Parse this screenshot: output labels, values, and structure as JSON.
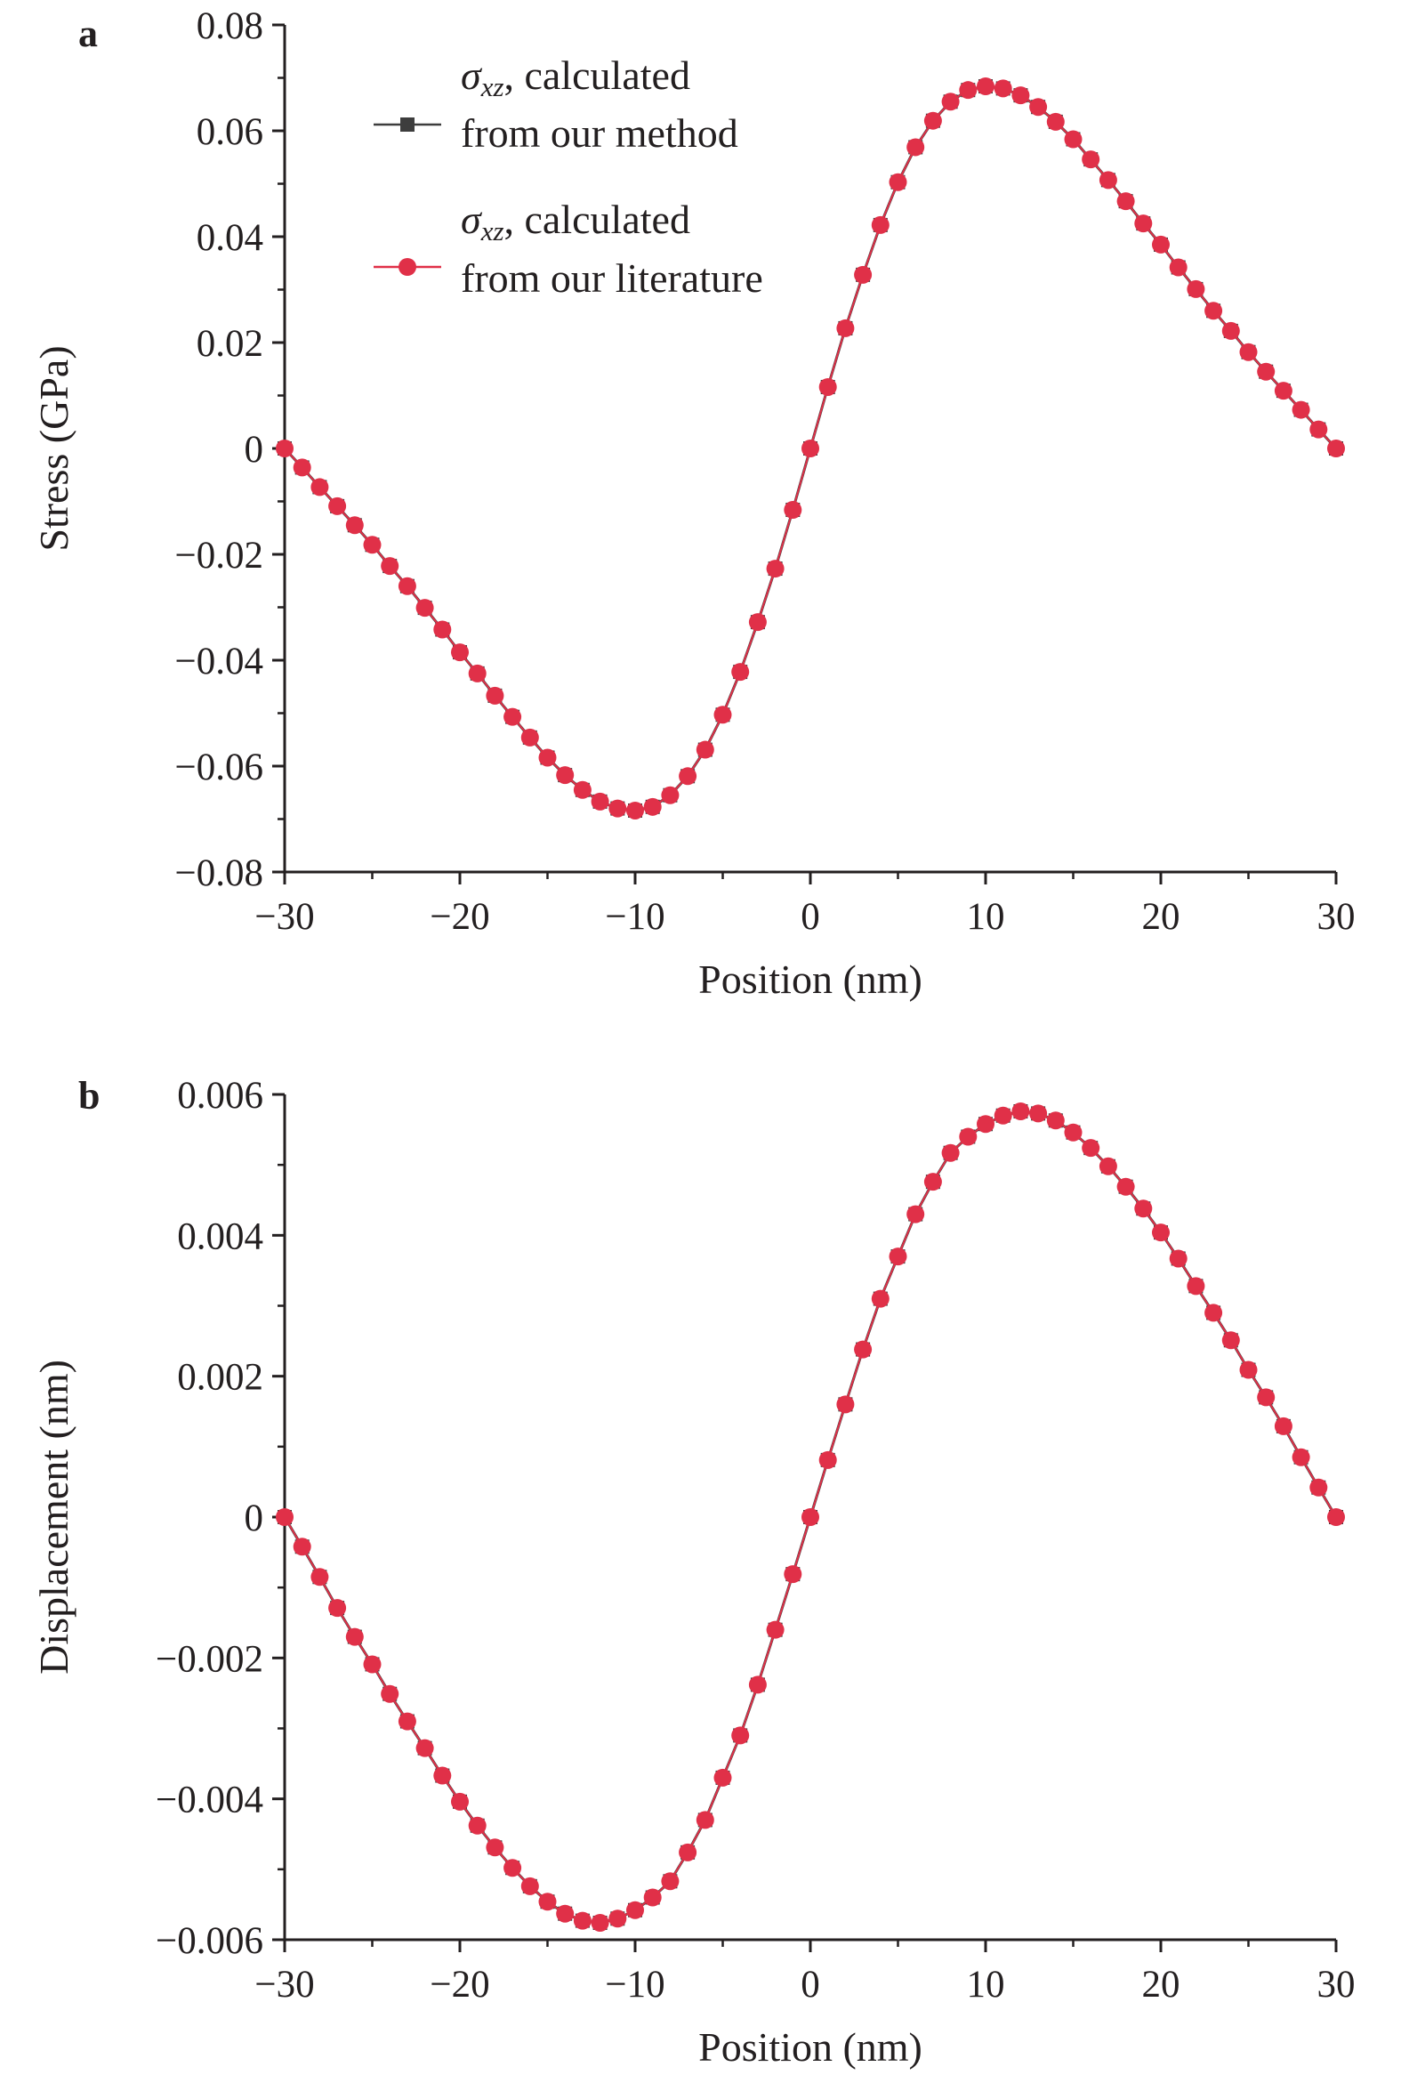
{
  "colors": {
    "series_method": "#3d3d3d",
    "series_literature": "#e03048",
    "axis": "#231f20"
  },
  "chart_data": [
    {
      "panel": "a",
      "type": "line",
      "xlabel": "Position (nm)",
      "ylabel": "Stress (GPa)",
      "xlim": [
        -30,
        30
      ],
      "ylim": [
        -0.08,
        0.08
      ],
      "xticks": [
        -30,
        -20,
        -10,
        0,
        10,
        20,
        30
      ],
      "xtick_labels": [
        "−30",
        "−20",
        "−10",
        "0",
        "10",
        "20",
        "30"
      ],
      "yticks": [
        -0.08,
        -0.06,
        -0.04,
        -0.02,
        0,
        0.02,
        0.04,
        0.06,
        0.08
      ],
      "ytick_labels": [
        "−0.08",
        "−0.06",
        "−0.04",
        "−0.02",
        "0",
        "0.02",
        "0.04",
        "0.06",
        "0.08"
      ],
      "grid": false,
      "legend": {
        "placement": "top-left",
        "entries": [
          {
            "symbol": "σ",
            "subscript": "xz",
            "line1_rest": ", calculated",
            "line2": "from our method"
          },
          {
            "symbol": "σ",
            "subscript": "xz",
            "line1_rest": ", calculated",
            "line2": "from our literature"
          }
        ]
      },
      "x": [
        -30,
        -29,
        -28,
        -27,
        -26,
        -25,
        -24,
        -23,
        -22,
        -21,
        -20,
        -19,
        -18,
        -17,
        -16,
        -15,
        -14,
        -13,
        -12,
        -11,
        -10,
        -9,
        -8,
        -7,
        -6,
        -5,
        -4,
        -3,
        -2,
        -1,
        0,
        1,
        2,
        3,
        4,
        5,
        6,
        7,
        8,
        9,
        10,
        11,
        12,
        13,
        14,
        15,
        16,
        17,
        18,
        19,
        20,
        21,
        22,
        23,
        24,
        25,
        26,
        27,
        28,
        29,
        30
      ],
      "series": [
        {
          "name": "σxz, calculated from our method",
          "marker": "square",
          "values": [
            0,
            -0.0036,
            -0.0073,
            -0.0109,
            -0.0145,
            -0.0182,
            -0.0222,
            -0.026,
            -0.0301,
            -0.0342,
            -0.0385,
            -0.0425,
            -0.0467,
            -0.0507,
            -0.0546,
            -0.0584,
            -0.0617,
            -0.0645,
            -0.0667,
            -0.068,
            -0.0684,
            -0.0677,
            -0.0655,
            -0.0619,
            -0.0569,
            -0.0503,
            -0.0422,
            -0.0328,
            -0.0227,
            -0.0116,
            0,
            0.0116,
            0.0227,
            0.0328,
            0.0422,
            0.0503,
            0.0569,
            0.0619,
            0.0655,
            0.0677,
            0.0684,
            0.068,
            0.0667,
            0.0645,
            0.0617,
            0.0584,
            0.0546,
            0.0507,
            0.0467,
            0.0425,
            0.0385,
            0.0342,
            0.0301,
            0.026,
            0.0222,
            0.0182,
            0.0145,
            0.0109,
            0.0073,
            0.0036,
            0
          ]
        },
        {
          "name": "σxz, calculated from our literature",
          "marker": "circle",
          "values": [
            0,
            -0.0036,
            -0.0073,
            -0.0109,
            -0.0145,
            -0.0182,
            -0.0222,
            -0.026,
            -0.0301,
            -0.0342,
            -0.0385,
            -0.0425,
            -0.0467,
            -0.0507,
            -0.0546,
            -0.0584,
            -0.0617,
            -0.0645,
            -0.0667,
            -0.068,
            -0.0684,
            -0.0677,
            -0.0655,
            -0.0619,
            -0.0569,
            -0.0503,
            -0.0422,
            -0.0328,
            -0.0227,
            -0.0116,
            0,
            0.0116,
            0.0227,
            0.0328,
            0.0422,
            0.0503,
            0.0569,
            0.0619,
            0.0655,
            0.0677,
            0.0684,
            0.068,
            0.0667,
            0.0645,
            0.0617,
            0.0584,
            0.0546,
            0.0507,
            0.0467,
            0.0425,
            0.0385,
            0.0342,
            0.0301,
            0.026,
            0.0222,
            0.0182,
            0.0145,
            0.0109,
            0.0073,
            0.0036,
            0
          ]
        }
      ]
    },
    {
      "panel": "b",
      "type": "line",
      "xlabel": "Position (nm)",
      "ylabel": "Displacement (nm)",
      "xlim": [
        -30,
        30
      ],
      "ylim": [
        -0.006,
        0.006
      ],
      "xticks": [
        -30,
        -20,
        -10,
        0,
        10,
        20,
        30
      ],
      "xtick_labels": [
        "−30",
        "−20",
        "−10",
        "0",
        "10",
        "20",
        "30"
      ],
      "yticks": [
        -0.006,
        -0.004,
        -0.002,
        0,
        0.002,
        0.004,
        0.006
      ],
      "ytick_labels": [
        "−0.006",
        "−0.004",
        "−0.002",
        "0",
        "0.002",
        "0.004",
        "0.006"
      ],
      "grid": false,
      "x": [
        -30,
        -29,
        -28,
        -27,
        -26,
        -25,
        -24,
        -23,
        -22,
        -21,
        -20,
        -19,
        -18,
        -17,
        -16,
        -15,
        -14,
        -13,
        -12,
        -11,
        -10,
        -9,
        -8,
        -7,
        -6,
        -5,
        -4,
        -3,
        -2,
        -1,
        0,
        1,
        2,
        3,
        4,
        5,
        6,
        7,
        8,
        9,
        10,
        11,
        12,
        13,
        14,
        15,
        16,
        17,
        18,
        19,
        20,
        21,
        22,
        23,
        24,
        25,
        26,
        27,
        28,
        29,
        30
      ],
      "series": [
        {
          "name": "method",
          "marker": "square",
          "values": [
            0,
            -0.00042,
            -0.00085,
            -0.00129,
            -0.0017,
            -0.00209,
            -0.00251,
            -0.0029,
            -0.00328,
            -0.00367,
            -0.00404,
            -0.00438,
            -0.00469,
            -0.00498,
            -0.00524,
            -0.00546,
            -0.00563,
            -0.00573,
            -0.00576,
            -0.0057,
            -0.00558,
            -0.0054,
            -0.00517,
            -0.00476,
            -0.0043,
            -0.0037,
            -0.0031,
            -0.00238,
            -0.0016,
            -0.00081,
            0,
            0.00081,
            0.0016,
            0.00238,
            0.0031,
            0.0037,
            0.0043,
            0.00476,
            0.00517,
            0.0054,
            0.00558,
            0.0057,
            0.00576,
            0.00573,
            0.00563,
            0.00546,
            0.00524,
            0.00498,
            0.00469,
            0.00438,
            0.00404,
            0.00367,
            0.00328,
            0.0029,
            0.00251,
            0.00209,
            0.0017,
            0.00129,
            0.00085,
            0.00042,
            0
          ]
        },
        {
          "name": "literature",
          "marker": "circle",
          "values": [
            0,
            -0.00042,
            -0.00085,
            -0.00129,
            -0.0017,
            -0.00209,
            -0.00251,
            -0.0029,
            -0.00328,
            -0.00367,
            -0.00404,
            -0.00438,
            -0.00469,
            -0.00498,
            -0.00524,
            -0.00546,
            -0.00563,
            -0.00573,
            -0.00576,
            -0.0057,
            -0.00558,
            -0.0054,
            -0.00517,
            -0.00476,
            -0.0043,
            -0.0037,
            -0.0031,
            -0.00238,
            -0.0016,
            -0.00081,
            0,
            0.00081,
            0.0016,
            0.00238,
            0.0031,
            0.0037,
            0.0043,
            0.00476,
            0.00517,
            0.0054,
            0.00558,
            0.0057,
            0.00576,
            0.00573,
            0.00563,
            0.00546,
            0.00524,
            0.00498,
            0.00469,
            0.00438,
            0.00404,
            0.00367,
            0.00328,
            0.0029,
            0.00251,
            0.00209,
            0.0017,
            0.00129,
            0.00085,
            0.00042,
            0
          ]
        }
      ]
    }
  ]
}
